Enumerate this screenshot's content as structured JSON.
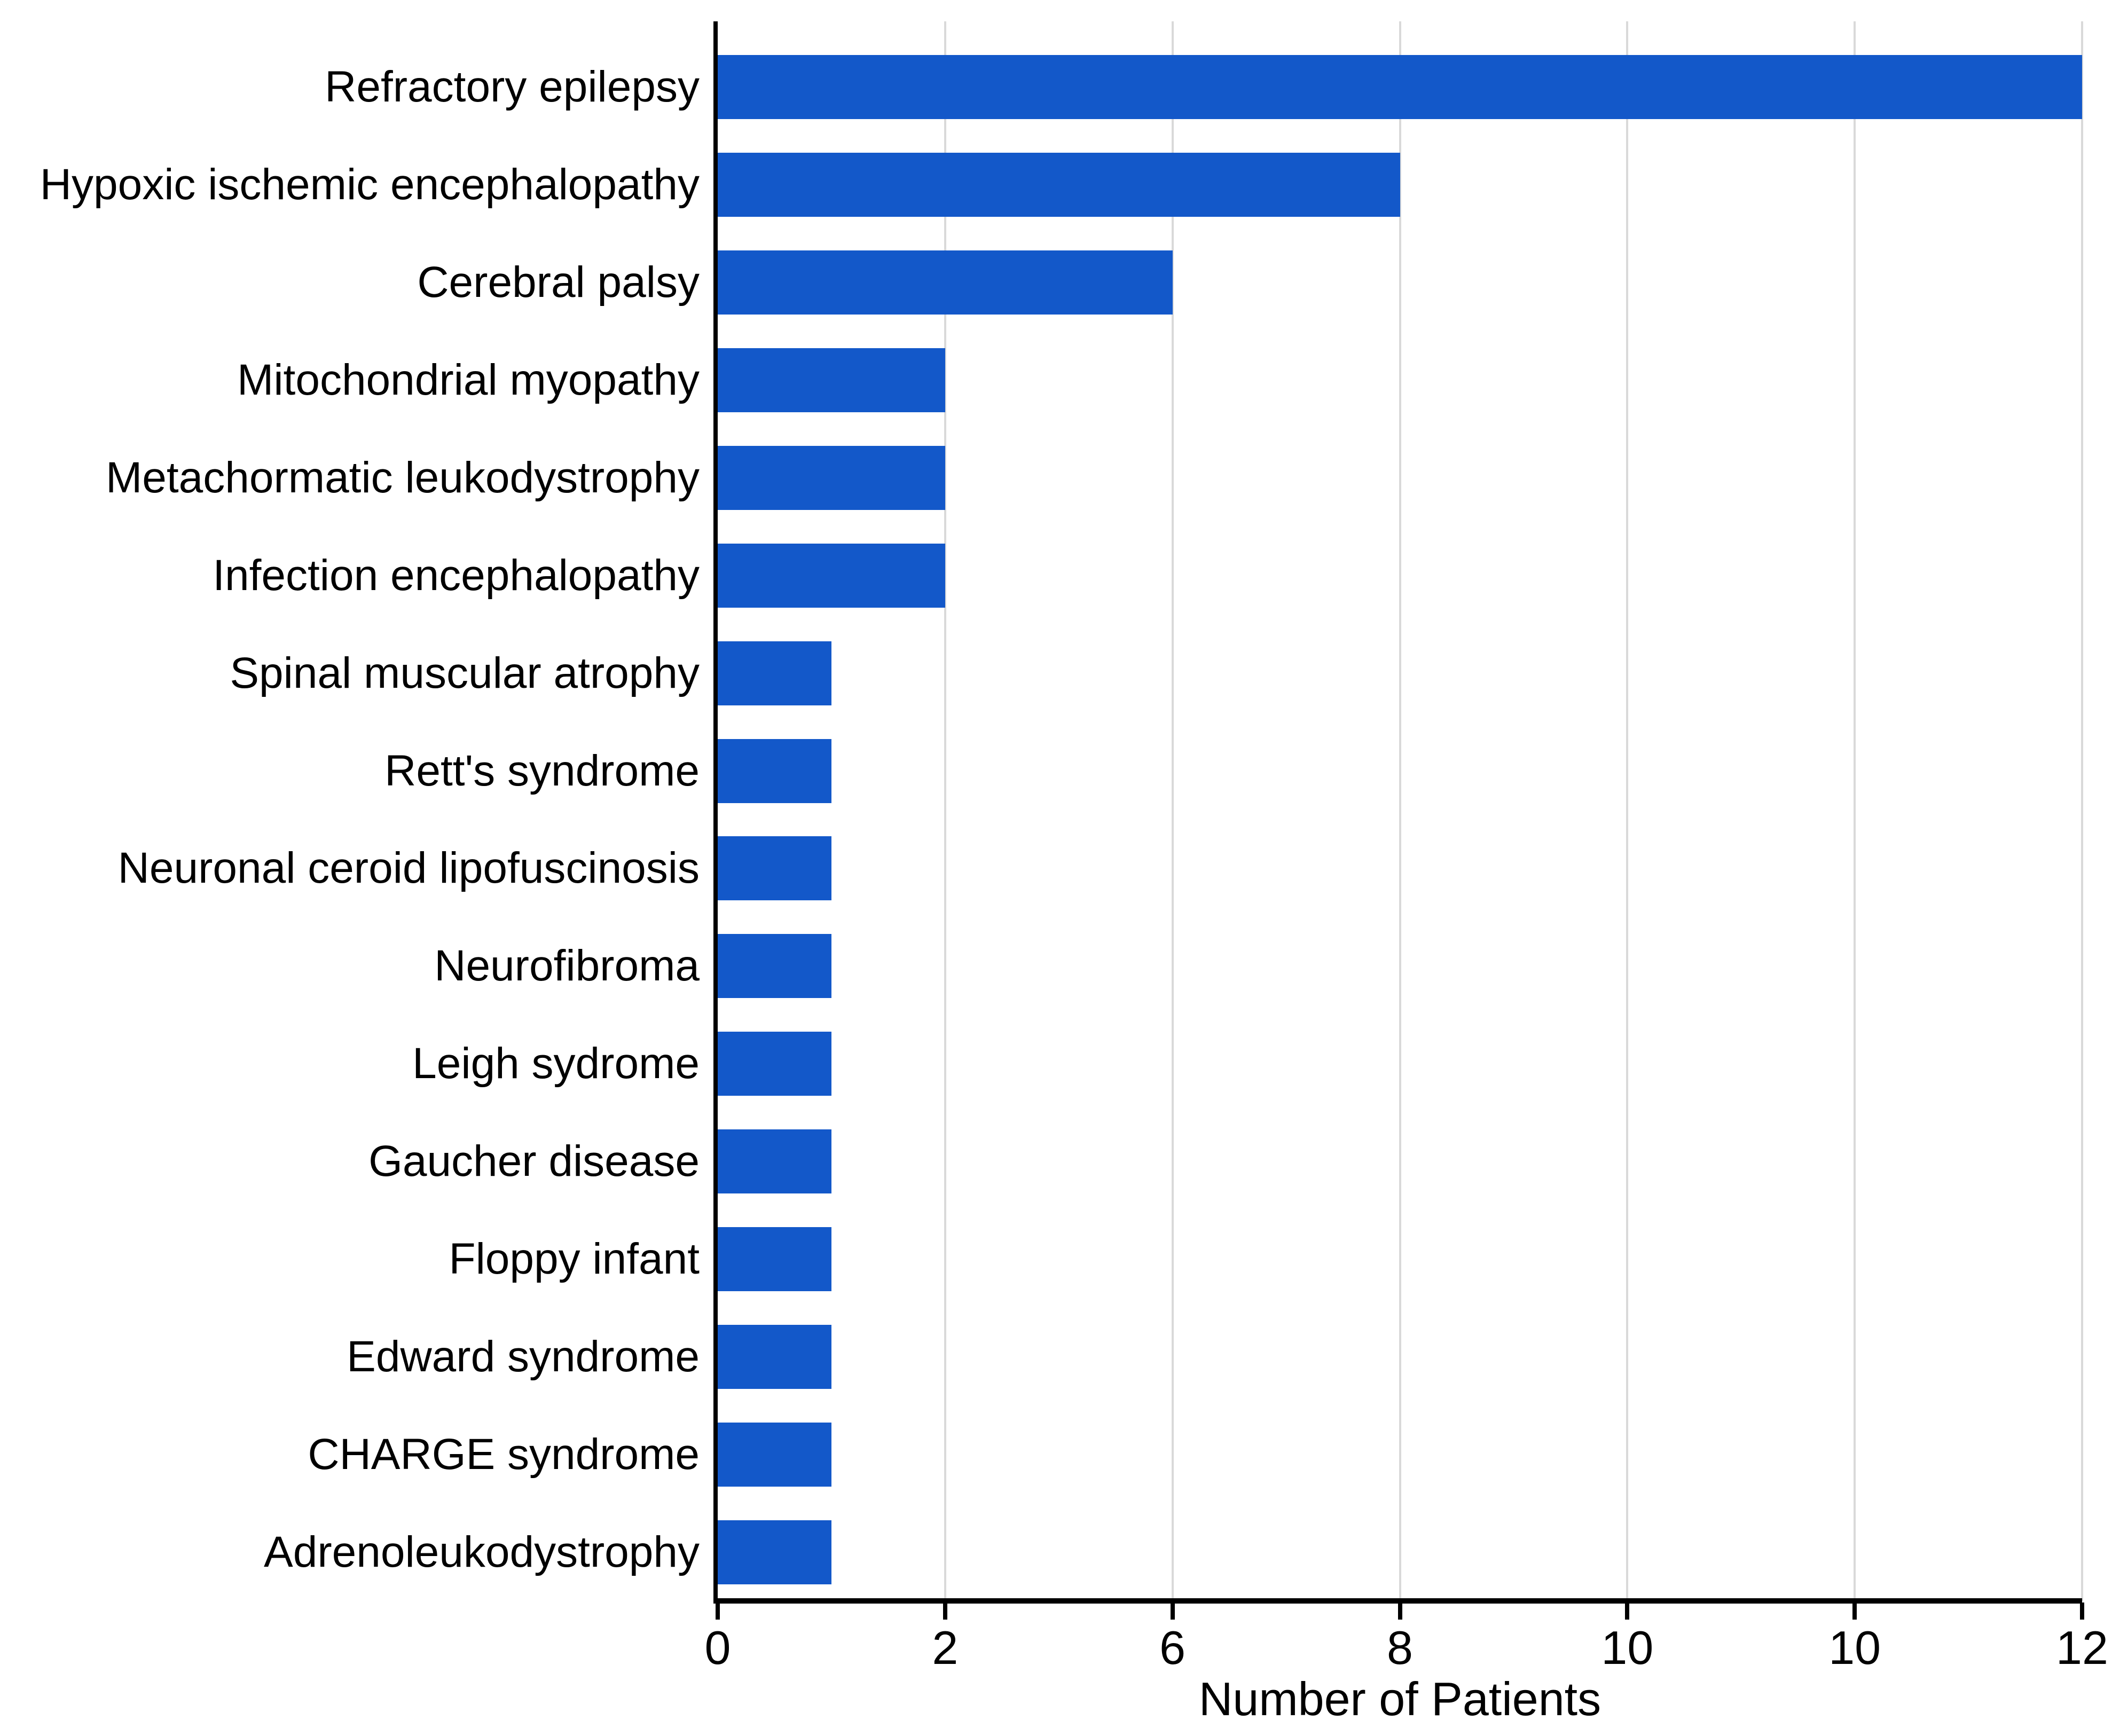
{
  "chart_data": {
    "type": "bar",
    "orientation": "horizontal",
    "title": "",
    "xlabel": "Number of Patients",
    "ylabel": "",
    "categories": [
      "Refractory epilepsy",
      "Hypoxic ischemic encephalopathy",
      "Cerebral palsy",
      "Mitochondrial myopathy",
      "Metachormatic leukodystrophy",
      "Infection encephalopathy",
      "Spinal muscular atrophy",
      "Rett's syndrome",
      "Neuronal ceroid lipofuscinosis",
      "Neurofibroma",
      "Leigh sydrome",
      "Gaucher disease",
      "Floppy infant",
      "Edward syndrome",
      "CHARGE syndrome",
      "Adrenoleukodystrophy"
    ],
    "values": [
      12,
      8,
      6,
      2,
      2,
      2,
      1,
      1,
      1,
      1,
      1,
      1,
      1,
      1,
      1,
      1
    ],
    "tick_labels": [
      "0",
      "2",
      "6",
      "8",
      "10",
      "10",
      "12"
    ],
    "axis_note": "7 evenly spaced x ticks carry the labels shown; bars end on the gridline matching their value",
    "grid": "vertical gridlines at each tick, drawn behind bars",
    "legend": "none",
    "colors": {
      "bar": "#1358C9",
      "grid": "#D9D9D9",
      "axis": "#000000",
      "background": "#FFFFFF",
      "text": "#000000"
    }
  }
}
